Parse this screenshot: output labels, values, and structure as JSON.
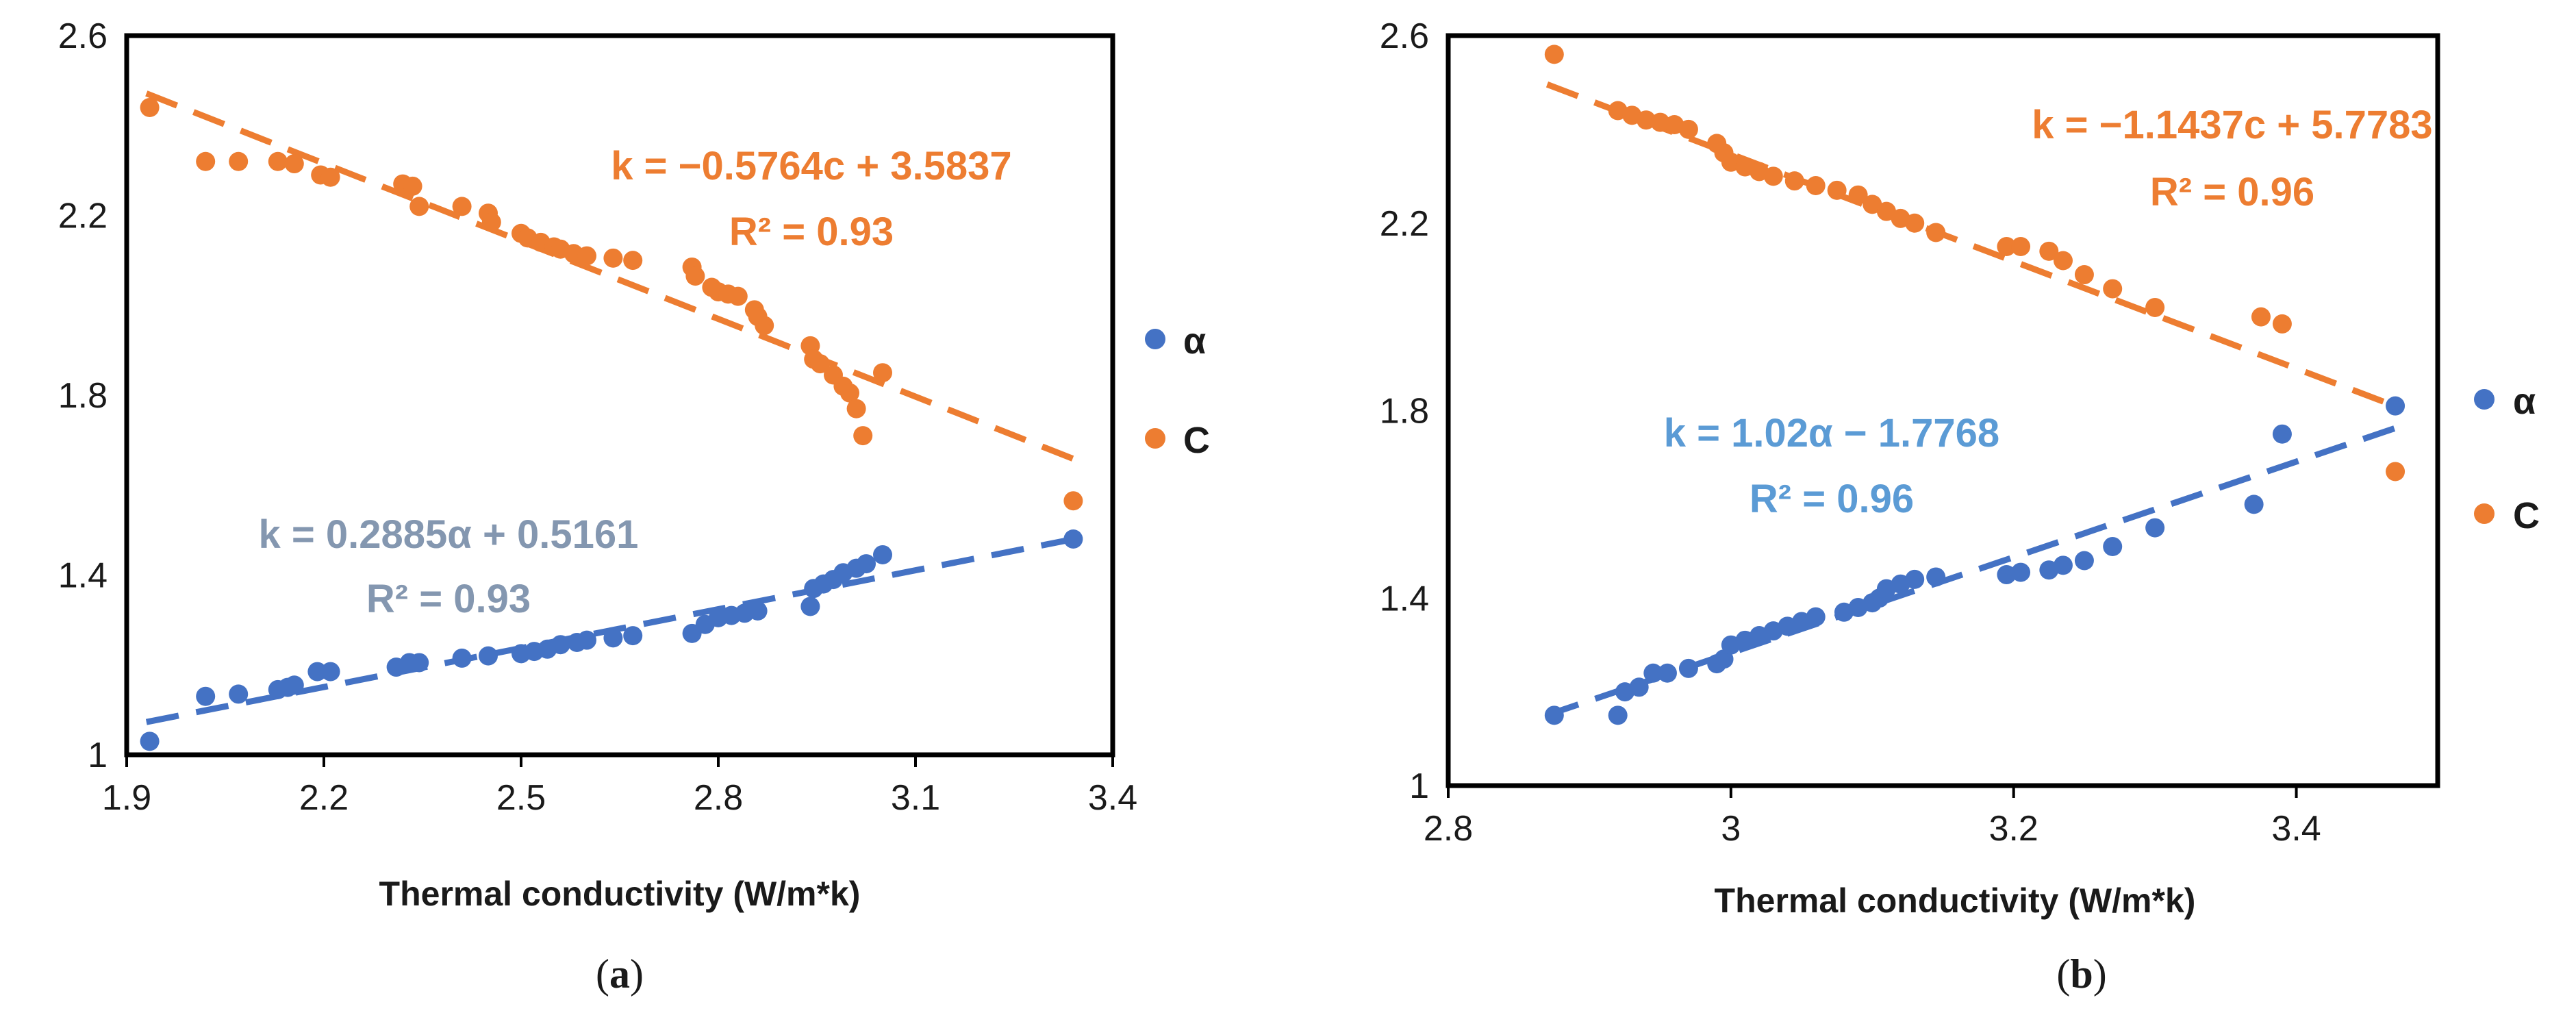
{
  "colors": {
    "alpha": "#4472C4",
    "c": "#ED7D31",
    "eq_alpha_a": "#8497B0",
    "eq_alpha_b": "#5B9BD5",
    "eq_c": "#ED7D31"
  },
  "chart_data": [
    {
      "type": "scatter",
      "panel_label": "a",
      "xlabel": "Thermal conductivity (W/m*k)",
      "ylabel": "",
      "xlim": [
        1.9,
        3.4
      ],
      "ylim": [
        1,
        2.6
      ],
      "xticks": [
        "1.9",
        "2.2",
        "2.5",
        "2.8",
        "3.1",
        "3.4"
      ],
      "yticks": [
        "1",
        "1.4",
        "1.8",
        "2.2",
        "2.6"
      ],
      "legend_position": "right",
      "series": [
        {
          "name": "α",
          "color_key": "alpha",
          "equation": "k = 0.2885α + 0.5161",
          "r2": "R² = 0.93",
          "trend": {
            "slope": 0.2885,
            "intercept": 0.5161,
            "x_from": 1.93,
            "x_to": 3.34
          },
          "points": [
            [
              1.935,
              1.03
            ],
            [
              2.02,
              1.13
            ],
            [
              2.07,
              1.135
            ],
            [
              2.13,
              1.145
            ],
            [
              2.145,
              1.15
            ],
            [
              2.155,
              1.155
            ],
            [
              2.19,
              1.185
            ],
            [
              2.21,
              1.185
            ],
            [
              2.31,
              1.195
            ],
            [
              2.33,
              1.205
            ],
            [
              2.345,
              1.205
            ],
            [
              2.41,
              1.215
            ],
            [
              2.45,
              1.22
            ],
            [
              2.5,
              1.225
            ],
            [
              2.52,
              1.23
            ],
            [
              2.54,
              1.235
            ],
            [
              2.56,
              1.245
            ],
            [
              2.585,
              1.25
            ],
            [
              2.6,
              1.255
            ],
            [
              2.64,
              1.26
            ],
            [
              2.67,
              1.265
            ],
            [
              2.76,
              1.27
            ],
            [
              2.78,
              1.29
            ],
            [
              2.8,
              1.305
            ],
            [
              2.82,
              1.31
            ],
            [
              2.84,
              1.315
            ],
            [
              2.86,
              1.32
            ],
            [
              2.94,
              1.33
            ],
            [
              2.945,
              1.37
            ],
            [
              2.96,
              1.38
            ],
            [
              2.975,
              1.39
            ],
            [
              2.99,
              1.405
            ],
            [
              3.01,
              1.415
            ],
            [
              3.025,
              1.425
            ],
            [
              3.05,
              1.445
            ],
            [
              3.34,
              1.48
            ]
          ]
        },
        {
          "name": "C",
          "color_key": "c",
          "equation": "k = −0.5764c + 3.5837",
          "r2": "R² = 0.93",
          "trend": {
            "slope": -0.5764,
            "intercept": 3.5837,
            "x_from": 1.93,
            "x_to": 3.34
          },
          "points": [
            [
              1.935,
              2.44
            ],
            [
              2.02,
              2.32
            ],
            [
              2.07,
              2.32
            ],
            [
              2.13,
              2.32
            ],
            [
              2.155,
              2.315
            ],
            [
              2.195,
              2.29
            ],
            [
              2.21,
              2.285
            ],
            [
              2.32,
              2.27
            ],
            [
              2.335,
              2.265
            ],
            [
              2.345,
              2.22
            ],
            [
              2.41,
              2.22
            ],
            [
              2.45,
              2.205
            ],
            [
              2.455,
              2.185
            ],
            [
              2.5,
              2.16
            ],
            [
              2.51,
              2.15
            ],
            [
              2.53,
              2.14
            ],
            [
              2.55,
              2.13
            ],
            [
              2.56,
              2.125
            ],
            [
              2.58,
              2.115
            ],
            [
              2.6,
              2.11
            ],
            [
              2.64,
              2.105
            ],
            [
              2.67,
              2.1
            ],
            [
              2.76,
              2.085
            ],
            [
              2.765,
              2.065
            ],
            [
              2.79,
              2.04
            ],
            [
              2.8,
              2.03
            ],
            [
              2.815,
              2.025
            ],
            [
              2.83,
              2.02
            ],
            [
              2.855,
              1.99
            ],
            [
              2.86,
              1.975
            ],
            [
              2.87,
              1.955
            ],
            [
              2.94,
              1.91
            ],
            [
              2.945,
              1.88
            ],
            [
              2.955,
              1.87
            ],
            [
              2.975,
              1.845
            ],
            [
              2.99,
              1.82
            ],
            [
              3.0,
              1.805
            ],
            [
              3.01,
              1.77
            ],
            [
              3.02,
              1.71
            ],
            [
              3.05,
              1.85
            ],
            [
              3.34,
              1.565
            ]
          ]
        }
      ]
    },
    {
      "type": "scatter",
      "panel_label": "b",
      "xlabel": "Thermal conductivity (W/m*k)",
      "ylabel": "",
      "xlim": [
        2.8,
        3.5
      ],
      "ylim": [
        1,
        2.6
      ],
      "xticks": [
        "2.8",
        "3",
        "3.2",
        "3.4"
      ],
      "xtick_values": [
        2.8,
        3.0,
        3.2,
        3.4
      ],
      "yticks": [
        "1",
        "1.4",
        "1.8",
        "2.2",
        "2.6"
      ],
      "legend_position": "right",
      "series": [
        {
          "name": "α",
          "color_key": "alpha",
          "equation": "k = 1.02α − 1.7768",
          "r2": "R² = 0.96",
          "trend": {
            "slope": 1.02,
            "intercept": -1.7768,
            "x_from": 2.87,
            "x_to": 3.47
          },
          "points": [
            [
              2.875,
              1.15
            ],
            [
              2.92,
              1.15
            ],
            [
              2.925,
              1.2
            ],
            [
              2.935,
              1.21
            ],
            [
              2.945,
              1.24
            ],
            [
              2.955,
              1.24
            ],
            [
              2.97,
              1.25
            ],
            [
              2.99,
              1.26
            ],
            [
              2.995,
              1.27
            ],
            [
              3.0,
              1.3
            ],
            [
              3.01,
              1.31
            ],
            [
              3.02,
              1.32
            ],
            [
              3.03,
              1.33
            ],
            [
              3.04,
              1.34
            ],
            [
              3.05,
              1.35
            ],
            [
              3.06,
              1.36
            ],
            [
              3.08,
              1.37
            ],
            [
              3.09,
              1.38
            ],
            [
              3.1,
              1.39
            ],
            [
              3.105,
              1.4
            ],
            [
              3.11,
              1.42
            ],
            [
              3.12,
              1.43
            ],
            [
              3.13,
              1.44
            ],
            [
              3.145,
              1.445
            ],
            [
              3.195,
              1.45
            ],
            [
              3.205,
              1.455
            ],
            [
              3.225,
              1.46
            ],
            [
              3.235,
              1.47
            ],
            [
              3.25,
              1.48
            ],
            [
              3.27,
              1.51
            ],
            [
              3.3,
              1.55
            ],
            [
              3.37,
              1.6
            ],
            [
              3.39,
              1.75
            ],
            [
              3.47,
              1.81
            ]
          ]
        },
        {
          "name": "C",
          "color_key": "c",
          "equation": "k = −1.1437c + 5.7783",
          "r2": "R² = 0.96",
          "trend": {
            "slope": -1.1437,
            "intercept": 5.7783,
            "x_from": 2.87,
            "x_to": 3.47
          },
          "points": [
            [
              2.875,
              2.56
            ],
            [
              2.92,
              2.44
            ],
            [
              2.93,
              2.43
            ],
            [
              2.94,
              2.42
            ],
            [
              2.95,
              2.415
            ],
            [
              2.96,
              2.41
            ],
            [
              2.97,
              2.4
            ],
            [
              2.99,
              2.37
            ],
            [
              2.995,
              2.35
            ],
            [
              3.0,
              2.33
            ],
            [
              3.01,
              2.32
            ],
            [
              3.02,
              2.31
            ],
            [
              3.03,
              2.3
            ],
            [
              3.045,
              2.29
            ],
            [
              3.06,
              2.28
            ],
            [
              3.075,
              2.27
            ],
            [
              3.09,
              2.26
            ],
            [
              3.1,
              2.24
            ],
            [
              3.11,
              2.225
            ],
            [
              3.12,
              2.21
            ],
            [
              3.13,
              2.2
            ],
            [
              3.145,
              2.18
            ],
            [
              3.195,
              2.15
            ],
            [
              3.205,
              2.15
            ],
            [
              3.225,
              2.14
            ],
            [
              3.235,
              2.12
            ],
            [
              3.25,
              2.09
            ],
            [
              3.27,
              2.06
            ],
            [
              3.3,
              2.02
            ],
            [
              3.375,
              2.0
            ],
            [
              3.39,
              1.985
            ],
            [
              3.47,
              1.67
            ]
          ]
        }
      ]
    }
  ]
}
